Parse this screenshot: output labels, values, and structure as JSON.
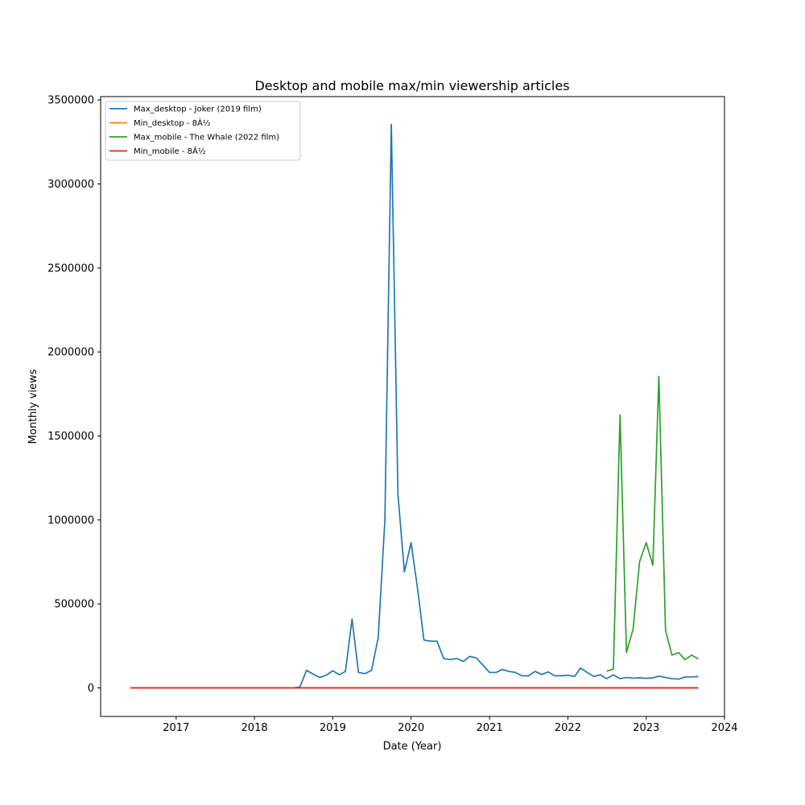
{
  "chart_data": {
    "type": "line",
    "title": "Desktop and mobile max/min viewership articles",
    "xlabel": "Date (Year)",
    "ylabel": "Monthly views",
    "xlim": [
      "2016-01-15",
      "2024-01-01"
    ],
    "ylim": [
      -170000,
      3520000
    ],
    "x_ticks": [
      "2017-01-01",
      "2018-01-01",
      "2019-01-01",
      "2020-01-01",
      "2021-01-01",
      "2022-01-01",
      "2023-01-01",
      "2024-01-01"
    ],
    "x_tick_labels": [
      "2017",
      "2018",
      "2019",
      "2020",
      "2021",
      "2022",
      "2023",
      "2024"
    ],
    "y_ticks": [
      0,
      500000,
      1000000,
      1500000,
      2000000,
      2500000,
      3000000,
      3500000
    ],
    "y_tick_labels": [
      "0",
      "500000",
      "1000000",
      "1500000",
      "2000000",
      "2500000",
      "3000000",
      "3500000"
    ],
    "grid": false,
    "legend_position": "top-left",
    "series": [
      {
        "name": "Max_desktop - Joker (2019 film)",
        "color": "#1f77b4",
        "points": [
          [
            "2018-07-01",
            0
          ],
          [
            "2018-08-01",
            5000
          ],
          [
            "2018-09-01",
            105000
          ],
          [
            "2018-10-01",
            82000
          ],
          [
            "2018-11-01",
            62000
          ],
          [
            "2018-12-01",
            75000
          ],
          [
            "2019-01-01",
            102000
          ],
          [
            "2019-02-01",
            78000
          ],
          [
            "2019-03-01",
            98000
          ],
          [
            "2019-04-01",
            410000
          ],
          [
            "2019-05-01",
            92000
          ],
          [
            "2019-06-01",
            85000
          ],
          [
            "2019-07-01",
            105000
          ],
          [
            "2019-08-01",
            300000
          ],
          [
            "2019-09-01",
            1000000
          ],
          [
            "2019-10-01",
            3355000
          ],
          [
            "2019-11-01",
            1150000
          ],
          [
            "2019-12-01",
            690000
          ],
          [
            "2020-01-01",
            865000
          ],
          [
            "2020-02-01",
            585000
          ],
          [
            "2020-03-01",
            285000
          ],
          [
            "2020-04-01",
            278000
          ],
          [
            "2020-05-01",
            278000
          ],
          [
            "2020-06-01",
            175000
          ],
          [
            "2020-07-01",
            168000
          ],
          [
            "2020-08-01",
            175000
          ],
          [
            "2020-09-01",
            158000
          ],
          [
            "2020-10-01",
            188000
          ],
          [
            "2020-11-01",
            178000
          ],
          [
            "2020-12-01",
            135000
          ],
          [
            "2021-01-01",
            92000
          ],
          [
            "2021-02-01",
            92000
          ],
          [
            "2021-03-01",
            110000
          ],
          [
            "2021-04-01",
            98000
          ],
          [
            "2021-05-01",
            92000
          ],
          [
            "2021-06-01",
            72000
          ],
          [
            "2021-07-01",
            72000
          ],
          [
            "2021-08-01",
            98000
          ],
          [
            "2021-09-01",
            80000
          ],
          [
            "2021-10-01",
            95000
          ],
          [
            "2021-11-01",
            72000
          ],
          [
            "2021-12-01",
            72000
          ],
          [
            "2022-01-01",
            75000
          ],
          [
            "2022-02-01",
            68000
          ],
          [
            "2022-03-01",
            118000
          ],
          [
            "2022-04-01",
            92000
          ],
          [
            "2022-05-01",
            68000
          ],
          [
            "2022-06-01",
            78000
          ],
          [
            "2022-07-01",
            55000
          ],
          [
            "2022-08-01",
            78000
          ],
          [
            "2022-09-01",
            55000
          ],
          [
            "2022-10-01",
            62000
          ],
          [
            "2022-11-01",
            58000
          ],
          [
            "2022-12-01",
            60000
          ],
          [
            "2023-01-01",
            57000
          ],
          [
            "2023-02-01",
            60000
          ],
          [
            "2023-03-01",
            70000
          ],
          [
            "2023-04-01",
            62000
          ],
          [
            "2023-05-01",
            55000
          ],
          [
            "2023-06-01",
            52000
          ],
          [
            "2023-07-01",
            65000
          ],
          [
            "2023-08-01",
            65000
          ],
          [
            "2023-09-01",
            68000
          ]
        ]
      },
      {
        "name": "Min_desktop - 8Â½",
        "color": "#ff7f0e",
        "points": [
          [
            "2016-06-01",
            0
          ],
          [
            "2017-01-01",
            0
          ],
          [
            "2018-01-01",
            0
          ],
          [
            "2019-01-01",
            0
          ],
          [
            "2020-01-01",
            0
          ],
          [
            "2021-01-01",
            0
          ],
          [
            "2022-01-01",
            0
          ],
          [
            "2023-01-01",
            0
          ],
          [
            "2023-09-01",
            0
          ]
        ]
      },
      {
        "name": "Max_mobile - The Whale (2022 film)",
        "color": "#2ca02c",
        "points": [
          [
            "2022-07-01",
            100000
          ],
          [
            "2022-08-01",
            112000
          ],
          [
            "2022-09-01",
            1625000
          ],
          [
            "2022-10-01",
            210000
          ],
          [
            "2022-11-01",
            350000
          ],
          [
            "2022-12-01",
            750000
          ],
          [
            "2023-01-01",
            865000
          ],
          [
            "2023-02-01",
            730000
          ],
          [
            "2023-03-01",
            1855000
          ],
          [
            "2023-04-01",
            345000
          ],
          [
            "2023-05-01",
            195000
          ],
          [
            "2023-06-01",
            210000
          ],
          [
            "2023-07-01",
            168000
          ],
          [
            "2023-08-01",
            195000
          ],
          [
            "2023-09-01",
            172000
          ]
        ]
      },
      {
        "name": "Min_mobile - 8Â½",
        "color": "#d62728",
        "points": [
          [
            "2016-06-01",
            0
          ],
          [
            "2017-01-01",
            0
          ],
          [
            "2018-01-01",
            0
          ],
          [
            "2019-01-01",
            0
          ],
          [
            "2020-01-01",
            0
          ],
          [
            "2021-01-01",
            0
          ],
          [
            "2022-01-01",
            0
          ],
          [
            "2023-01-01",
            0
          ],
          [
            "2023-09-01",
            0
          ]
        ]
      }
    ]
  }
}
